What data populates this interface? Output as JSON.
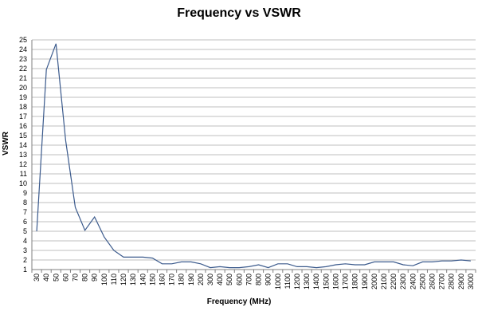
{
  "chart_data": {
    "type": "line",
    "title": "Frequency vs VSWR",
    "xlabel": "Frequency (MHz)",
    "ylabel": "VSWR",
    "ylim": [
      1,
      25
    ],
    "grid": true,
    "line_color": "#3b5a8c",
    "grid_color": "#bfbfbf",
    "categories": [
      "30",
      "40",
      "50",
      "60",
      "70",
      "80",
      "90",
      "100",
      "110",
      "120",
      "130",
      "140",
      "150",
      "160",
      "170",
      "180",
      "190",
      "200",
      "300",
      "400",
      "500",
      "600",
      "700",
      "800",
      "900",
      "1000",
      "1100",
      "1200",
      "1300",
      "1400",
      "1500",
      "1600",
      "1700",
      "1800",
      "1900",
      "2000",
      "2100",
      "2200",
      "2300",
      "2400",
      "2500",
      "2600",
      "2700",
      "2800",
      "2900",
      "3000"
    ],
    "series": [
      {
        "values": [
          5.0,
          21.9,
          24.6,
          14.5,
          7.5,
          5.1,
          6.5,
          4.4,
          3.0,
          2.3,
          2.3,
          2.3,
          2.2,
          1.6,
          1.6,
          1.8,
          1.8,
          1.6,
          1.2,
          1.3,
          1.2,
          1.2,
          1.3,
          1.5,
          1.2,
          1.6,
          1.6,
          1.3,
          1.3,
          1.2,
          1.3,
          1.5,
          1.6,
          1.5,
          1.5,
          1.8,
          1.8,
          1.8,
          1.5,
          1.4,
          1.8,
          1.8,
          1.9,
          1.9,
          2.0,
          1.9
        ]
      }
    ]
  }
}
